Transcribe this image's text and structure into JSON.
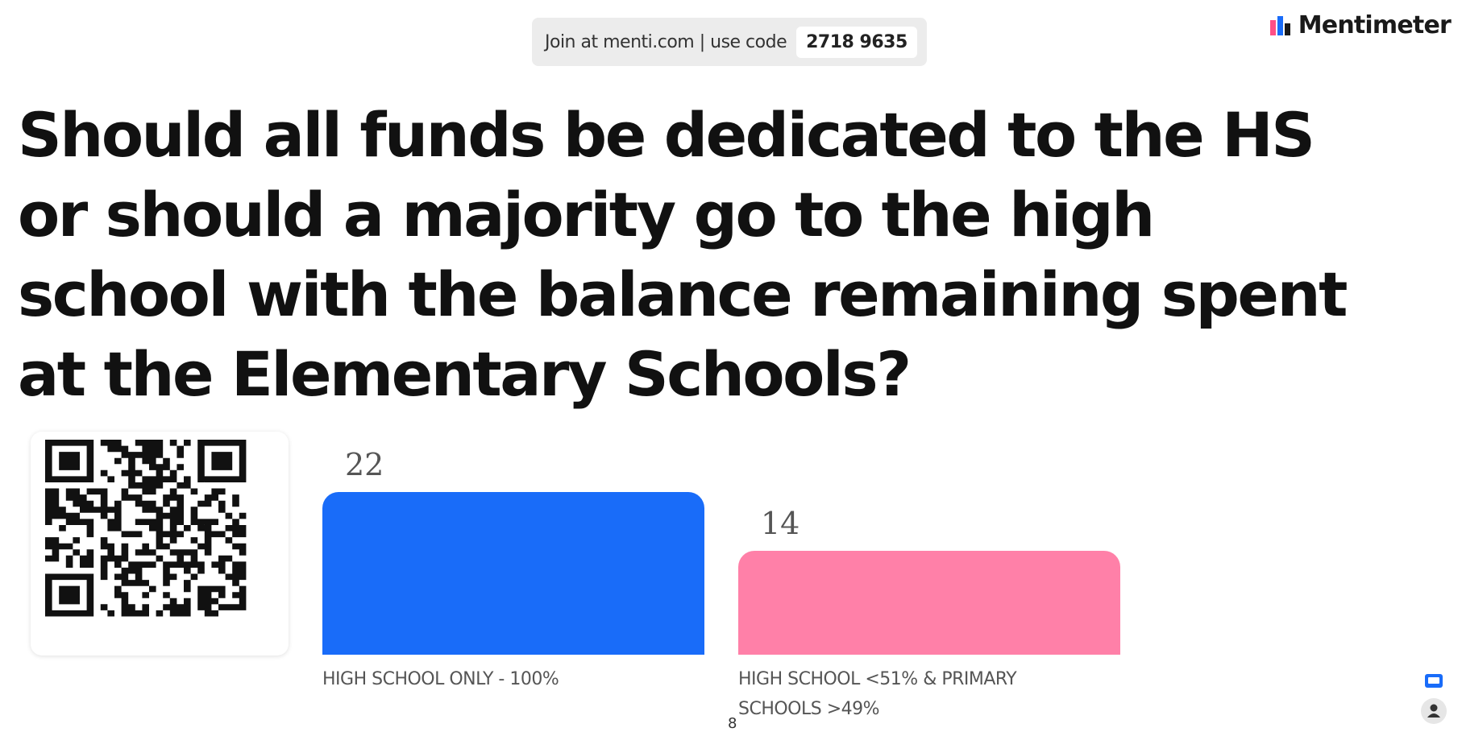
{
  "join": {
    "text": "Join at menti.com | use code",
    "code": "2718 9635"
  },
  "brand": {
    "name": "Mentimeter",
    "logo_icon": "mentimeter-logo-icon"
  },
  "question": "Should all funds be dedicated to the HS or should a majority go to the high school with the balance remaining spent at the Elementary Schools?",
  "qr": {
    "icon": "qr-code-icon"
  },
  "chart_data": {
    "type": "bar",
    "categories": [
      "HIGH SCHOOL ONLY - 100%",
      "HIGH SCHOOL <51% & PRIMARY SCHOOLS >49%"
    ],
    "values": [
      22,
      14
    ],
    "colors": [
      "#196cf9",
      "#ff80a8"
    ],
    "xlabel": "",
    "ylabel": "",
    "grid": false,
    "legend": "none"
  },
  "page_number": "8",
  "corner": {
    "chat_icon": "chat-icon",
    "participants_icon": "person-icon"
  }
}
